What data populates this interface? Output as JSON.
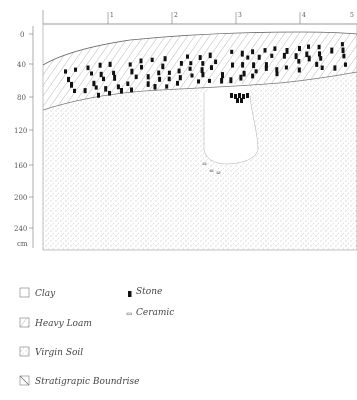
{
  "section": {
    "depth_scale": {
      "ticks": [
        "0",
        "40",
        "80",
        "120",
        "160",
        "200",
        "240"
      ],
      "unit": "cm"
    },
    "column_labels": [
      "1",
      "2",
      "3",
      "4",
      "5"
    ]
  },
  "legend": {
    "clay": "Clay",
    "heavy_loam": "Heavy Loam",
    "virgin_soil": "Virgin Soil",
    "boundary": "Stratigrapic Boundrise",
    "stone": "Stone",
    "ceramic": "Ceramic"
  }
}
